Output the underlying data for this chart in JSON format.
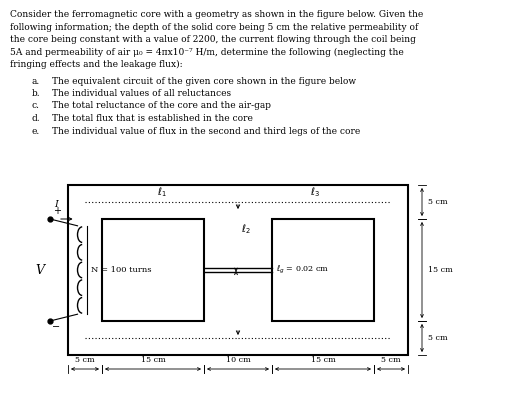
{
  "bg_color": "#ffffff",
  "text_color": "#000000",
  "body_fontsize": 6.5,
  "list_fontsize": 6.5,
  "title_lines": [
    "Consider the ferromagnetic core with a geometry as shown in the figure below. Given the",
    "following information; the depth of the solid core being 5 cm the relative permeability of",
    "the core being constant with a value of 2200, the current flowing through the coil being",
    "5A and permeability of air μ₀ = 4πx10⁻⁷ H/m, determine the following (neglecting the",
    "fringing effects and the leakage flux):"
  ],
  "list_items": [
    [
      "a.",
      "The equivalent circuit of the given core shown in the figure below"
    ],
    [
      "b.",
      "The individual values of all reluctances"
    ],
    [
      "c.",
      "The total reluctance of the core and the air-gap"
    ],
    [
      "d.",
      "The total flux that is established in the core"
    ],
    [
      "e.",
      "The individual value of flux in the second and third legs of the core"
    ]
  ],
  "dim_bottom": [
    "5 cm",
    "15 cm",
    "10 cm",
    "15 cm",
    "5 cm"
  ],
  "dim_right": [
    "5 cm",
    "15 cm",
    "5 cm"
  ]
}
